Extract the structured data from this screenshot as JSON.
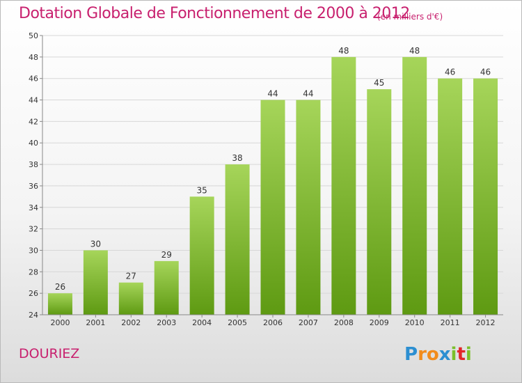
{
  "header": {
    "title": "Dotation Globale de Fonctionnement de 2000 à 2012",
    "subtitle": "(en milliers d'€)"
  },
  "footer": {
    "commune": "DOURIEZ",
    "brand": "Proxiti"
  },
  "colors": {
    "title": "#c8206e",
    "bar_top": "#a6d55a",
    "bar_bottom": "#5e9a12",
    "grid": "#d7d7d7",
    "axis": "#888888"
  },
  "chart_data": {
    "type": "bar",
    "categories": [
      "2000",
      "2001",
      "2002",
      "2003",
      "2004",
      "2005",
      "2006",
      "2007",
      "2008",
      "2009",
      "2010",
      "2011",
      "2012"
    ],
    "values": [
      26,
      30,
      27,
      29,
      35,
      38,
      44,
      44,
      48,
      45,
      48,
      46,
      46
    ],
    "ylim": [
      24,
      50
    ],
    "yticks": [
      24,
      26,
      28,
      30,
      32,
      34,
      36,
      38,
      40,
      42,
      44,
      46,
      48,
      50
    ],
    "grid": true,
    "data_labels": true
  }
}
